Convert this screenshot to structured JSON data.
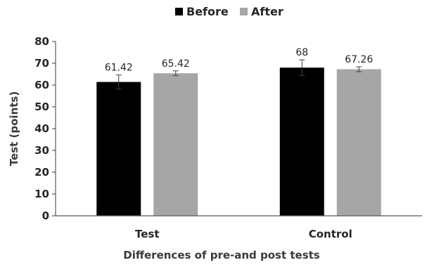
{
  "chart_data": {
    "type": "bar",
    "categories": [
      "Test",
      "Control"
    ],
    "series": [
      {
        "name": "Before",
        "values": [
          61.42,
          68
        ],
        "errors": [
          3.2,
          3.6
        ],
        "labels": [
          "61.42",
          "68"
        ],
        "color": "#000000"
      },
      {
        "name": "After",
        "values": [
          65.42,
          67.26
        ],
        "errors": [
          1.1,
          1.1
        ],
        "labels": [
          "65.42",
          "67.26"
        ],
        "color": "#a6a6a6"
      }
    ],
    "xlabel": "Differences of pre-and post tests",
    "ylabel": "Test (points)",
    "ylim": [
      0,
      80
    ],
    "yticks": [
      "0",
      "10",
      "20",
      "30",
      "40",
      "50",
      "60",
      "70",
      "80"
    ],
    "grid": false,
    "legend": "top-center"
  }
}
